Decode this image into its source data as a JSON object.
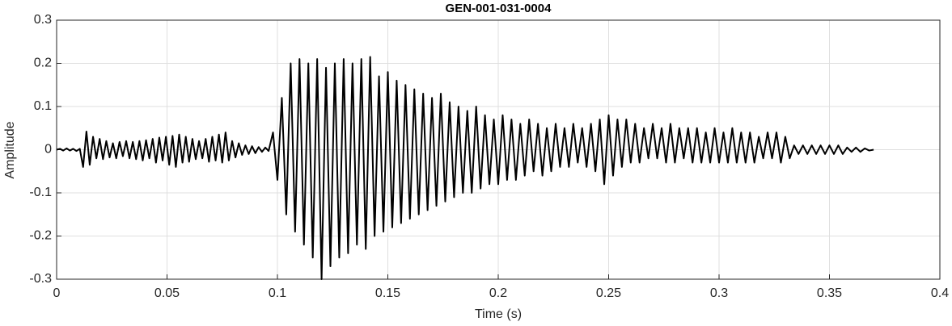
{
  "chart_data": {
    "type": "line",
    "title": "GEN-001-031-0004",
    "xlabel": "Time (s)",
    "ylabel": "Amplitude",
    "xlim": [
      0,
      0.4
    ],
    "xticks": [
      0,
      0.05,
      0.1,
      0.15,
      0.2,
      0.25,
      0.3,
      0.35,
      0.4
    ],
    "ylim": [
      -0.3,
      0.3
    ],
    "yticks": [
      -0.3,
      -0.2,
      -0.1,
      0,
      0.1,
      0.2,
      0.3
    ],
    "grid": true,
    "color": "#000000",
    "x": [
      0,
      0.0015,
      0.003,
      0.0045,
      0.006,
      0.0075,
      0.009,
      0.0105,
      0.012,
      0.0135,
      0.015,
      0.0165,
      0.018,
      0.0195,
      0.021,
      0.0225,
      0.024,
      0.0255,
      0.027,
      0.0285,
      0.03,
      0.0315,
      0.033,
      0.0345,
      0.036,
      0.0375,
      0.039,
      0.0405,
      0.042,
      0.0435,
      0.045,
      0.0465,
      0.048,
      0.0495,
      0.051,
      0.0525,
      0.054,
      0.0555,
      0.057,
      0.0585,
      0.06,
      0.0615,
      0.063,
      0.0645,
      0.066,
      0.0675,
      0.069,
      0.0705,
      0.072,
      0.0735,
      0.075,
      0.0765,
      0.078,
      0.0795,
      0.081,
      0.0825,
      0.084,
      0.0855,
      0.087,
      0.0885,
      0.09,
      0.0915,
      0.093,
      0.0945,
      0.096,
      0.098,
      0.1,
      0.102,
      0.104,
      0.106,
      0.108,
      0.11,
      0.112,
      0.114,
      0.116,
      0.118,
      0.12,
      0.122,
      0.124,
      0.126,
      0.128,
      0.13,
      0.132,
      0.134,
      0.136,
      0.138,
      0.14,
      0.142,
      0.144,
      0.146,
      0.148,
      0.15,
      0.152,
      0.154,
      0.156,
      0.158,
      0.16,
      0.162,
      0.164,
      0.166,
      0.168,
      0.17,
      0.172,
      0.174,
      0.176,
      0.178,
      0.18,
      0.182,
      0.184,
      0.186,
      0.188,
      0.19,
      0.192,
      0.194,
      0.196,
      0.198,
      0.2,
      0.202,
      0.204,
      0.206,
      0.208,
      0.21,
      0.212,
      0.214,
      0.216,
      0.218,
      0.22,
      0.222,
      0.224,
      0.226,
      0.228,
      0.23,
      0.232,
      0.234,
      0.236,
      0.238,
      0.24,
      0.242,
      0.244,
      0.246,
      0.248,
      0.25,
      0.252,
      0.254,
      0.256,
      0.258,
      0.26,
      0.262,
      0.264,
      0.266,
      0.268,
      0.27,
      0.272,
      0.274,
      0.276,
      0.278,
      0.28,
      0.282,
      0.284,
      0.286,
      0.288,
      0.29,
      0.292,
      0.294,
      0.296,
      0.298,
      0.3,
      0.302,
      0.304,
      0.306,
      0.308,
      0.31,
      0.312,
      0.314,
      0.316,
      0.318,
      0.32,
      0.322,
      0.324,
      0.326,
      0.328,
      0.33,
      0.332,
      0.334,
      0.336,
      0.338,
      0.34,
      0.342,
      0.344,
      0.346,
      0.348,
      0.35,
      0.352,
      0.354,
      0.356,
      0.358,
      0.36,
      0.362,
      0.364,
      0.366,
      0.368,
      0.37
    ],
    "values": [
      0,
      0.002,
      -0.002,
      0.003,
      -0.002,
      0.002,
      -0.003,
      0.002,
      -0.04,
      0.042,
      -0.035,
      0.03,
      -0.02,
      0.025,
      -0.022,
      0.02,
      -0.018,
      0.015,
      -0.02,
      0.018,
      -0.015,
      0.02,
      -0.02,
      0.018,
      -0.022,
      0.02,
      -0.025,
      0.022,
      -0.02,
      0.025,
      -0.03,
      0.028,
      -0.025,
      0.03,
      -0.035,
      0.032,
      -0.04,
      0.035,
      -0.03,
      0.03,
      -0.028,
      0.025,
      -0.022,
      0.02,
      -0.02,
      0.025,
      -0.028,
      0.03,
      -0.025,
      0.035,
      -0.03,
      0.04,
      -0.025,
      0.02,
      -0.018,
      0.015,
      -0.012,
      0.01,
      -0.01,
      0.008,
      -0.008,
      0.006,
      -0.005,
      0.005,
      -0.003,
      0.04,
      -0.07,
      0.12,
      -0.15,
      0.2,
      -0.19,
      0.21,
      -0.22,
      0.2,
      -0.25,
      0.21,
      -0.3,
      0.19,
      -0.27,
      0.2,
      -0.25,
      0.21,
      -0.24,
      0.2,
      -0.22,
      0.21,
      -0.23,
      0.215,
      -0.2,
      0.17,
      -0.19,
      0.18,
      -0.18,
      0.16,
      -0.17,
      0.15,
      -0.16,
      0.14,
      -0.15,
      0.13,
      -0.14,
      0.12,
      -0.13,
      0.13,
      -0.12,
      0.11,
      -0.11,
      0.1,
      -0.1,
      0.09,
      -0.1,
      0.1,
      -0.09,
      0.08,
      -0.08,
      0.07,
      -0.08,
      0.08,
      -0.07,
      0.07,
      -0.07,
      0.06,
      -0.06,
      0.07,
      -0.05,
      0.06,
      -0.06,
      0.05,
      -0.05,
      0.06,
      -0.04,
      0.05,
      -0.04,
      0.06,
      -0.03,
      0.05,
      -0.04,
      0.06,
      -0.05,
      0.07,
      -0.08,
      0.08,
      -0.06,
      0.07,
      -0.04,
      0.07,
      -0.03,
      0.06,
      -0.03,
      0.05,
      -0.02,
      0.06,
      -0.02,
      0.05,
      -0.03,
      0.06,
      -0.03,
      0.05,
      -0.02,
      0.05,
      -0.03,
      0.05,
      -0.03,
      0.04,
      -0.03,
      0.05,
      -0.03,
      0.04,
      -0.03,
      0.05,
      -0.03,
      0.04,
      -0.03,
      0.04,
      -0.03,
      0.03,
      -0.02,
      0.04,
      -0.02,
      0.04,
      -0.03,
      0.03,
      -0.02,
      0.01,
      -0.01,
      0.01,
      -0.01,
      0.01,
      -0.01,
      0.01,
      -0.01,
      0.01,
      -0.01,
      0.01,
      -0.01,
      0.005,
      -0.005,
      0.005,
      -0.005,
      0.003,
      -0.002,
      0
    ]
  }
}
